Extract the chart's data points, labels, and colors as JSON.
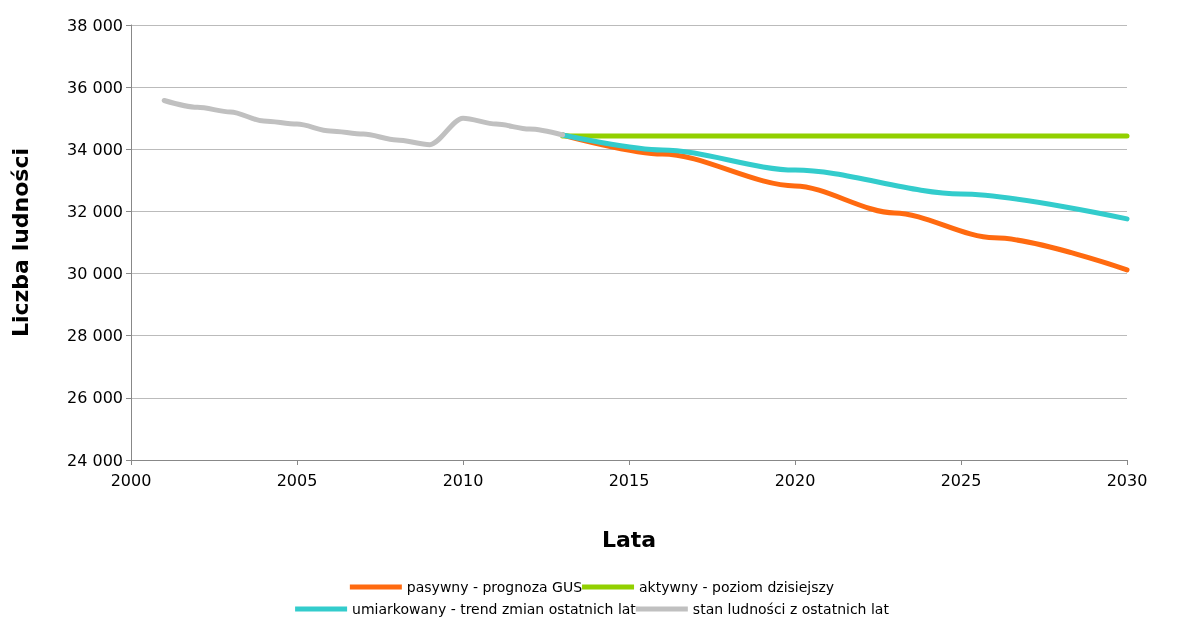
{
  "chart_data": {
    "type": "line",
    "xlabel": "Lata",
    "ylabel": "Liczba ludności",
    "xlim": [
      2000,
      2030
    ],
    "xticks": [
      2000,
      2005,
      2010,
      2015,
      2020,
      2025,
      2030
    ],
    "ylim": [
      24000,
      38000
    ],
    "yticks": [
      {
        "value": 24000,
        "label": "24 000"
      },
      {
        "value": 26000,
        "label": "26 000"
      },
      {
        "value": 28000,
        "label": "28 000"
      },
      {
        "value": 30000,
        "label": "30 000"
      },
      {
        "value": 32000,
        "label": "32 000"
      },
      {
        "value": 34000,
        "label": "34 000"
      },
      {
        "value": 36000,
        "label": "36 000"
      },
      {
        "value": 38000,
        "label": "38 000"
      }
    ],
    "grid": "y",
    "legend": "bottom",
    "marker": "none",
    "line_style": "solid",
    "series": [
      {
        "name": "pasywny - prognoza GUS",
        "color": "#ff6a10",
        "x": [
          2013,
          2016,
          2020,
          2023,
          2026,
          2030
        ],
        "values": [
          34460,
          33850,
          32820,
          31950,
          31150,
          30120
        ]
      },
      {
        "name": "aktywny - poziom dzisiejszy",
        "color": "#92d000",
        "x": [
          2013,
          2030
        ],
        "values": [
          34430,
          34430
        ]
      },
      {
        "name": "umiarkowany - trend zmian ostatnich lat",
        "color": "#33cccc",
        "x": [
          2013,
          2016,
          2020,
          2025,
          2030
        ],
        "values": [
          34460,
          33980,
          33330,
          32560,
          31760
        ]
      },
      {
        "name": "stan ludności z ostatnich lat",
        "color": "#c0c0c0",
        "x": [
          2001,
          2002,
          2003,
          2004,
          2005,
          2006,
          2007,
          2008,
          2009,
          2010,
          2011,
          2012,
          2013
        ],
        "values": [
          35570,
          35350,
          35200,
          34910,
          34810,
          34590,
          34490,
          34300,
          34150,
          35000,
          34810,
          34650,
          34460
        ]
      }
    ]
  }
}
